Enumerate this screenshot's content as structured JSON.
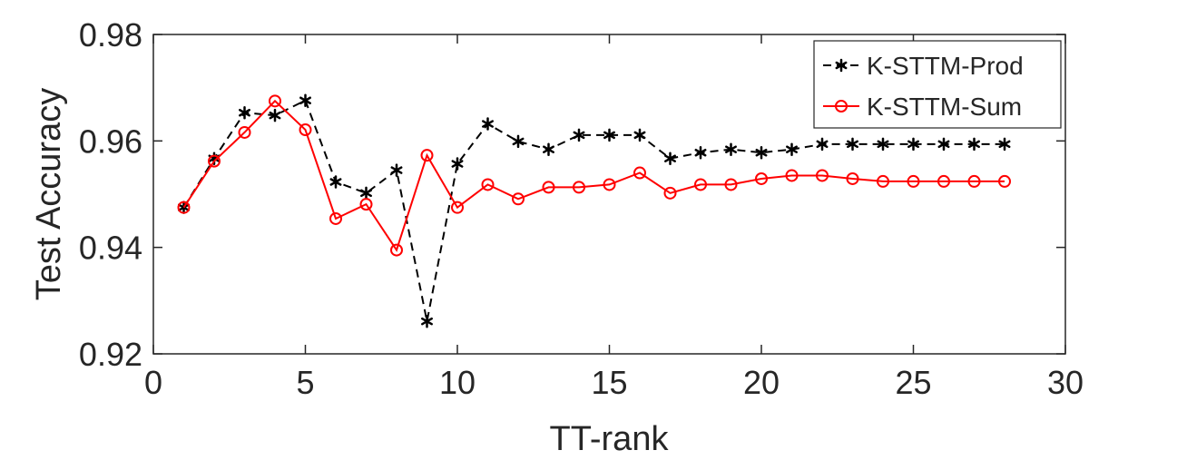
{
  "chart_data": {
    "type": "line",
    "title": "",
    "xlabel": "TT-rank",
    "ylabel": "Test Accuracy",
    "xlim": [
      0,
      30
    ],
    "ylim": [
      0.92,
      0.98
    ],
    "xticks": [
      0,
      5,
      10,
      15,
      20,
      25,
      30
    ],
    "xtick_labels": [
      "0",
      "5",
      "10",
      "15",
      "20",
      "25",
      "30"
    ],
    "yticks": [
      0.92,
      0.94,
      0.96,
      0.98
    ],
    "ytick_labels": [
      "0.92",
      "0.94",
      "0.96",
      "0.98"
    ],
    "legend_position": "top-right",
    "series": [
      {
        "name": "K-STTM-Prod",
        "color": "#000000",
        "line_style": "dashed",
        "marker": "asterisk",
        "x": [
          1,
          2,
          3,
          4,
          5,
          6,
          7,
          8,
          9,
          10,
          11,
          12,
          13,
          14,
          15,
          16,
          17,
          18,
          19,
          20,
          21,
          22,
          23,
          24,
          25,
          26,
          27,
          28
        ],
        "values": [
          0.9475,
          0.9567,
          0.9653,
          0.9648,
          0.9676,
          0.9523,
          0.9502,
          0.9545,
          0.9261,
          0.9557,
          0.9632,
          0.9599,
          0.9584,
          0.9611,
          0.9611,
          0.9611,
          0.9567,
          0.9578,
          0.9584,
          0.9578,
          0.9584,
          0.9594,
          0.9594,
          0.9594,
          0.9594,
          0.9594,
          0.9594,
          0.9594
        ]
      },
      {
        "name": "K-STTM-Sum",
        "color": "#ff0000",
        "line_style": "solid",
        "marker": "circle",
        "x": [
          1,
          2,
          3,
          4,
          5,
          6,
          7,
          8,
          9,
          10,
          11,
          12,
          13,
          14,
          15,
          16,
          17,
          18,
          19,
          20,
          21,
          22,
          23,
          24,
          25,
          26,
          27,
          28
        ],
        "values": [
          0.9475,
          0.9562,
          0.9616,
          0.9675,
          0.9621,
          0.9454,
          0.9481,
          0.9395,
          0.9573,
          0.9475,
          0.9518,
          0.9491,
          0.9513,
          0.9513,
          0.9518,
          0.954,
          0.9502,
          0.9518,
          0.9518,
          0.9529,
          0.9535,
          0.9535,
          0.9529,
          0.9524,
          0.9524,
          0.9524,
          0.9524,
          0.9524
        ]
      }
    ]
  }
}
